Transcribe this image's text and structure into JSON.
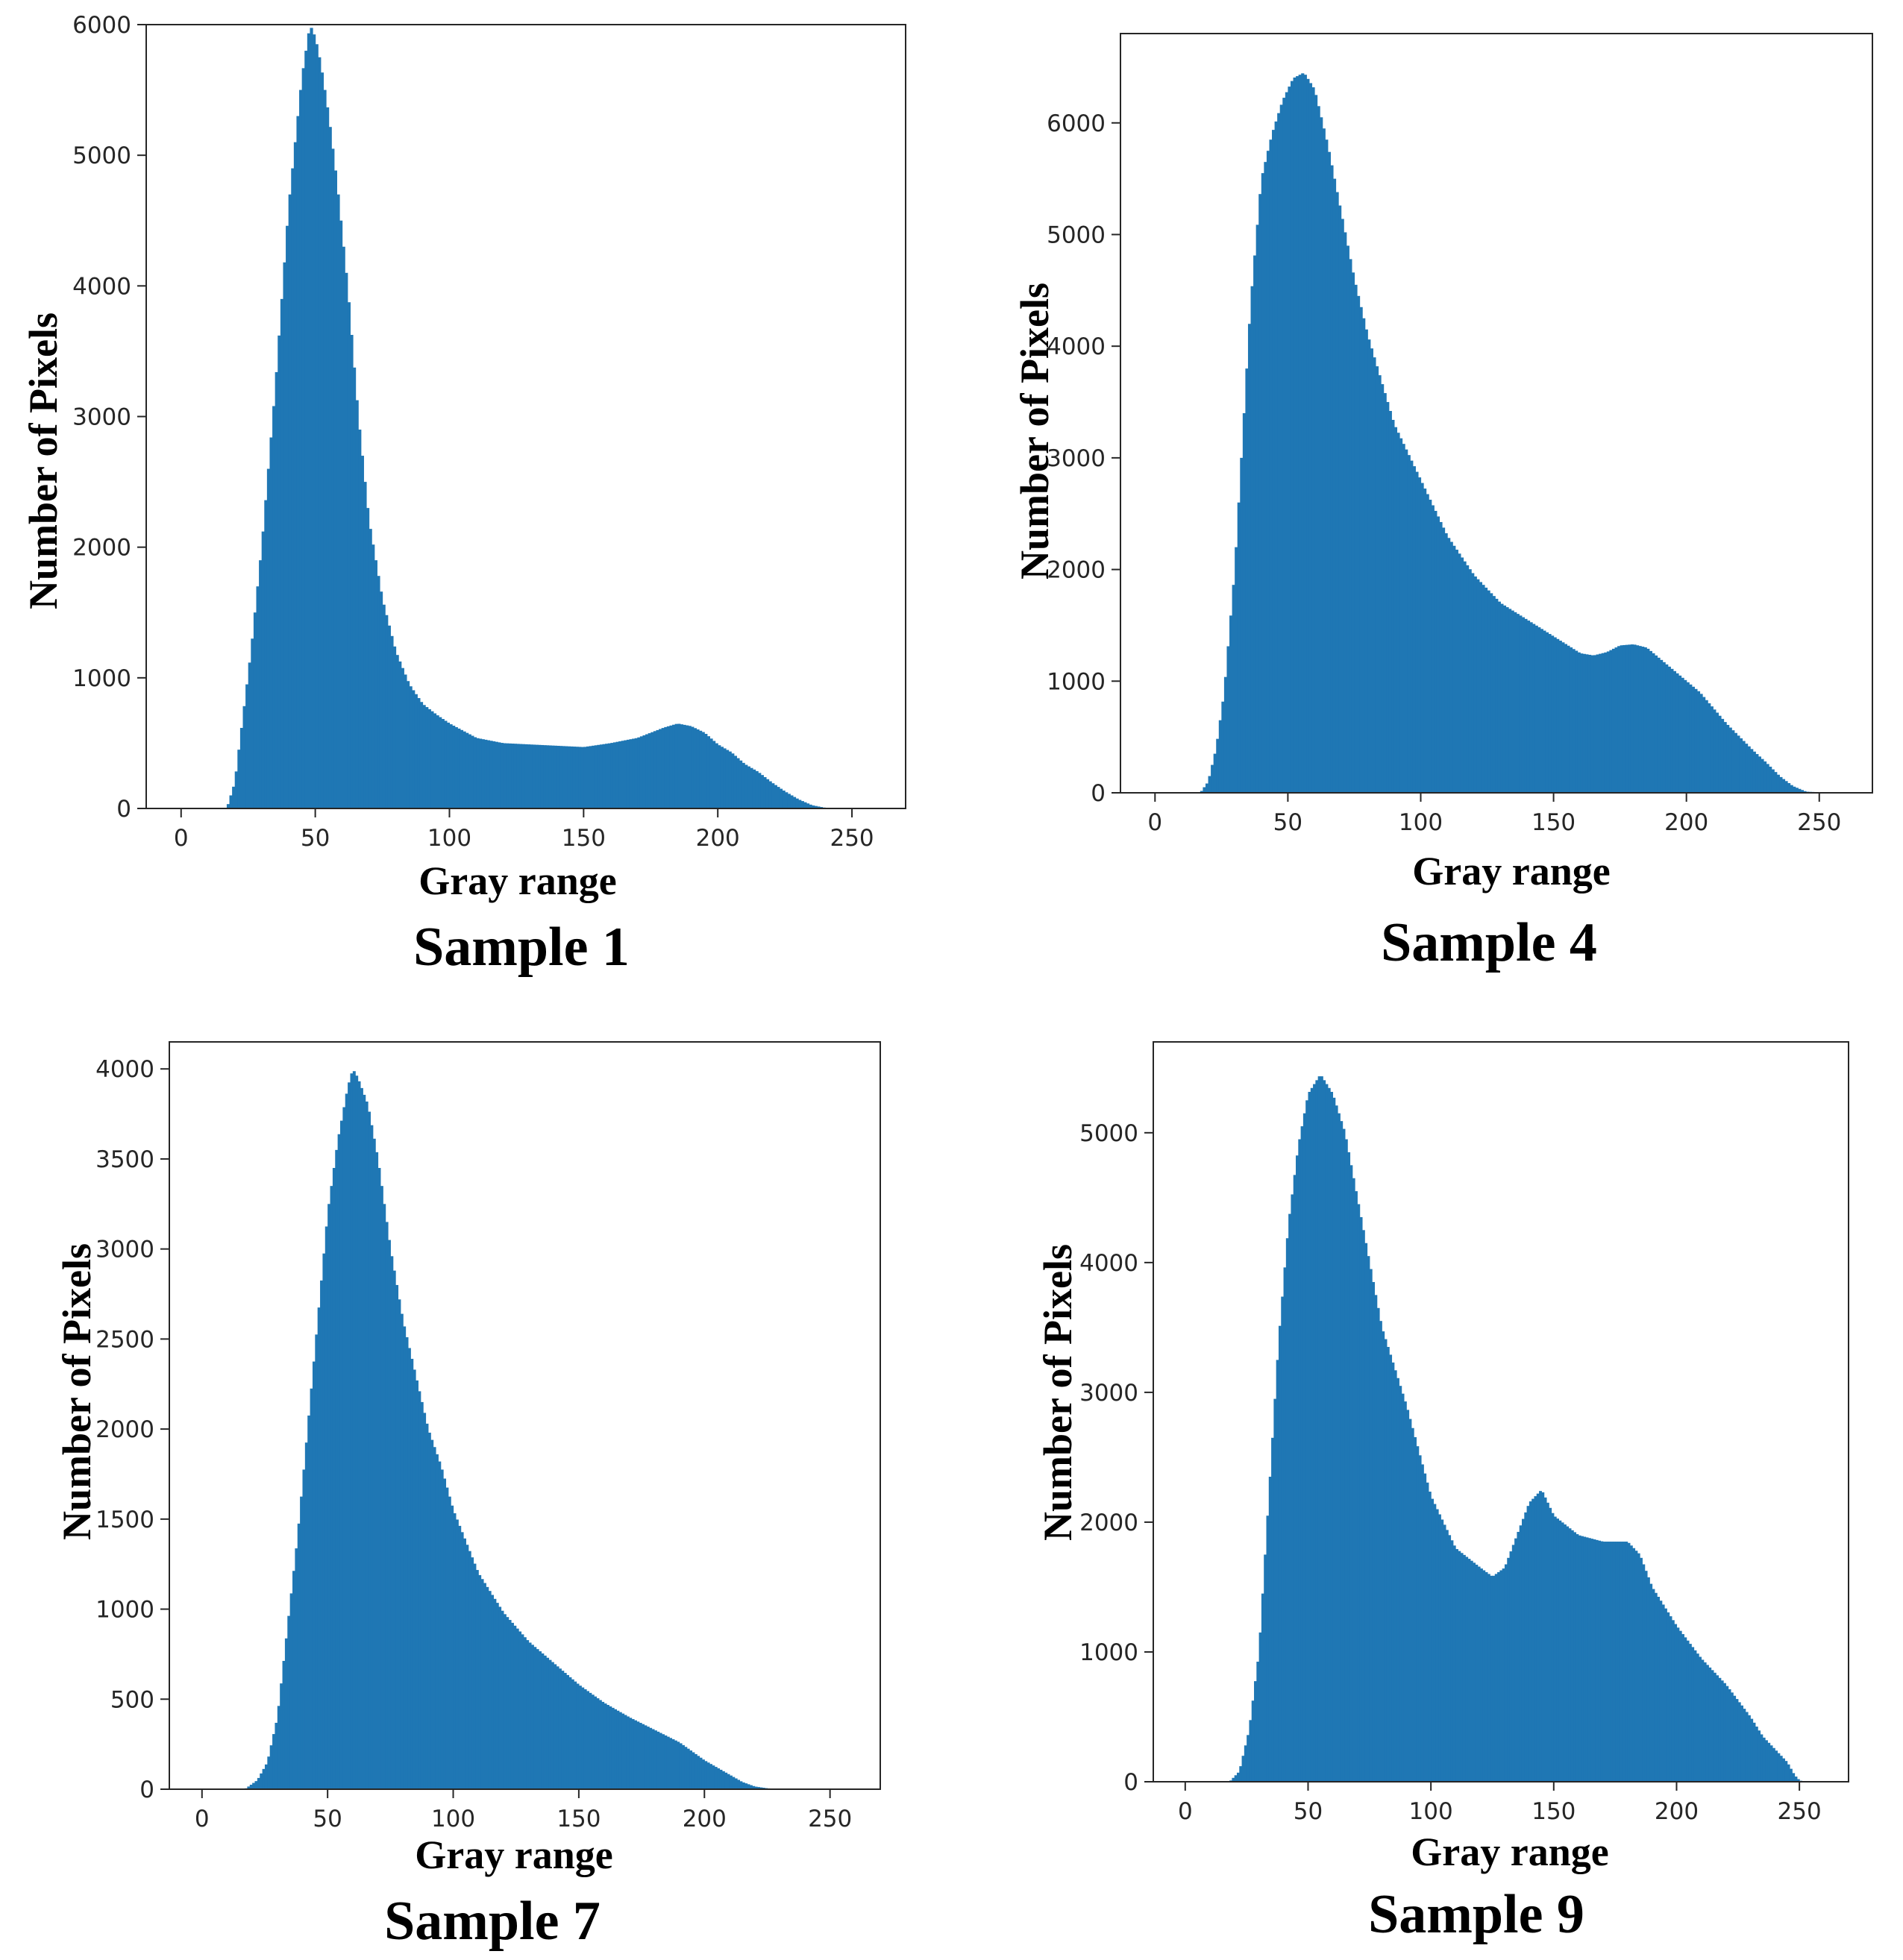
{
  "colors": {
    "bar": "#1f77b4",
    "axis": "#262626"
  },
  "chart_data": [
    {
      "type": "bar",
      "caption": "Sample 1",
      "xlabel": "Gray range",
      "ylabel": "Number of Pixels",
      "xlim": [
        -13,
        270
      ],
      "ylim": [
        0,
        6000
      ],
      "xticks": [
        0,
        50,
        100,
        150,
        200,
        250
      ],
      "yticks": [
        0,
        1000,
        2000,
        3000,
        4000,
        5000,
        6000
      ],
      "x": [
        0,
        10,
        17,
        20,
        23,
        26,
        30,
        35,
        40,
        45,
        48,
        50,
        52,
        55,
        58,
        62,
        66,
        70,
        75,
        80,
        85,
        90,
        95,
        100,
        110,
        120,
        130,
        140,
        150,
        160,
        170,
        180,
        185,
        190,
        195,
        200,
        205,
        210,
        215,
        220,
        225,
        230,
        235,
        240,
        245,
        255
      ],
      "values": [
        0,
        0,
        0,
        200,
        700,
        1200,
        2000,
        3200,
        4600,
        5600,
        6000,
        5900,
        5700,
        5300,
        4800,
        4000,
        3000,
        2200,
        1600,
        1200,
        950,
        800,
        720,
        650,
        540,
        500,
        490,
        480,
        470,
        500,
        540,
        620,
        650,
        630,
        580,
        490,
        430,
        340,
        280,
        200,
        130,
        70,
        25,
        5,
        0,
        0
      ]
    },
    {
      "type": "bar",
      "caption": "Sample 4",
      "xlabel": "Gray range",
      "ylabel": "Number of Pixels",
      "xlim": [
        -13,
        270
      ],
      "ylim": [
        0,
        6800
      ],
      "xticks": [
        0,
        50,
        100,
        150,
        200,
        250
      ],
      "yticks": [
        0,
        1000,
        2000,
        3000,
        4000,
        5000,
        6000
      ],
      "x": [
        0,
        10,
        17,
        20,
        23,
        26,
        30,
        33,
        36,
        40,
        44,
        48,
        52,
        56,
        60,
        65,
        70,
        75,
        80,
        85,
        90,
        100,
        110,
        120,
        130,
        140,
        150,
        160,
        165,
        170,
        175,
        180,
        185,
        190,
        195,
        200,
        205,
        210,
        215,
        220,
        225,
        230,
        235,
        240,
        245,
        255
      ],
      "values": [
        0,
        0,
        0,
        100,
        400,
        900,
        2000,
        3200,
        4400,
        5500,
        5900,
        6200,
        6400,
        6450,
        6300,
        5800,
        5200,
        4600,
        4100,
        3700,
        3300,
        2800,
        2300,
        1950,
        1700,
        1550,
        1400,
        1250,
        1230,
        1260,
        1320,
        1330,
        1300,
        1200,
        1100,
        1000,
        900,
        760,
        620,
        500,
        380,
        270,
        150,
        60,
        10,
        0
      ]
    },
    {
      "type": "bar",
      "caption": "Sample 7",
      "xlabel": "Gray range",
      "ylabel": "Number of Pixels",
      "xlim": [
        -13,
        270
      ],
      "ylim": [
        0,
        4150
      ],
      "xticks": [
        0,
        50,
        100,
        150,
        200,
        250
      ],
      "yticks": [
        0,
        500,
        1000,
        1500,
        2000,
        2500,
        3000,
        3500,
        4000
      ],
      "x": [
        0,
        10,
        17,
        22,
        26,
        30,
        34,
        38,
        42,
        46,
        50,
        54,
        58,
        60,
        62,
        66,
        70,
        75,
        80,
        85,
        90,
        95,
        100,
        110,
        120,
        130,
        140,
        150,
        160,
        170,
        180,
        190,
        200,
        210,
        215,
        220,
        225,
        230,
        240,
        255
      ],
      "values": [
        0,
        0,
        0,
        50,
        150,
        400,
        900,
        1400,
        2000,
        2600,
        3200,
        3600,
        3900,
        4000,
        3950,
        3800,
        3500,
        3000,
        2600,
        2300,
        2000,
        1800,
        1550,
        1200,
        980,
        820,
        700,
        580,
        480,
        400,
        330,
        260,
        160,
        80,
        40,
        15,
        5,
        0,
        0,
        0
      ]
    },
    {
      "type": "bar",
      "caption": "Sample 9",
      "xlabel": "Gray range",
      "ylabel": "Number of Pixels",
      "xlim": [
        -13,
        270
      ],
      "ylim": [
        0,
        5700
      ],
      "xticks": [
        0,
        50,
        100,
        150,
        200,
        250
      ],
      "yticks": [
        0,
        1000,
        2000,
        3000,
        4000,
        5000
      ],
      "x": [
        0,
        10,
        18,
        22,
        26,
        30,
        34,
        38,
        42,
        46,
        50,
        55,
        60,
        65,
        70,
        75,
        80,
        90,
        100,
        110,
        120,
        125,
        130,
        135,
        140,
        145,
        150,
        160,
        170,
        180,
        185,
        190,
        200,
        210,
        220,
        230,
        235,
        240,
        245,
        248,
        250,
        252
      ],
      "values": [
        0,
        0,
        0,
        80,
        400,
        1000,
        2200,
        3400,
        4300,
        4900,
        5300,
        5450,
        5300,
        5000,
        4500,
        4000,
        3500,
        2900,
        2200,
        1800,
        1650,
        1580,
        1650,
        1900,
        2150,
        2250,
        2050,
        1900,
        1850,
        1850,
        1750,
        1500,
        1200,
        950,
        750,
        500,
        350,
        250,
        150,
        50,
        10,
        0
      ]
    }
  ]
}
